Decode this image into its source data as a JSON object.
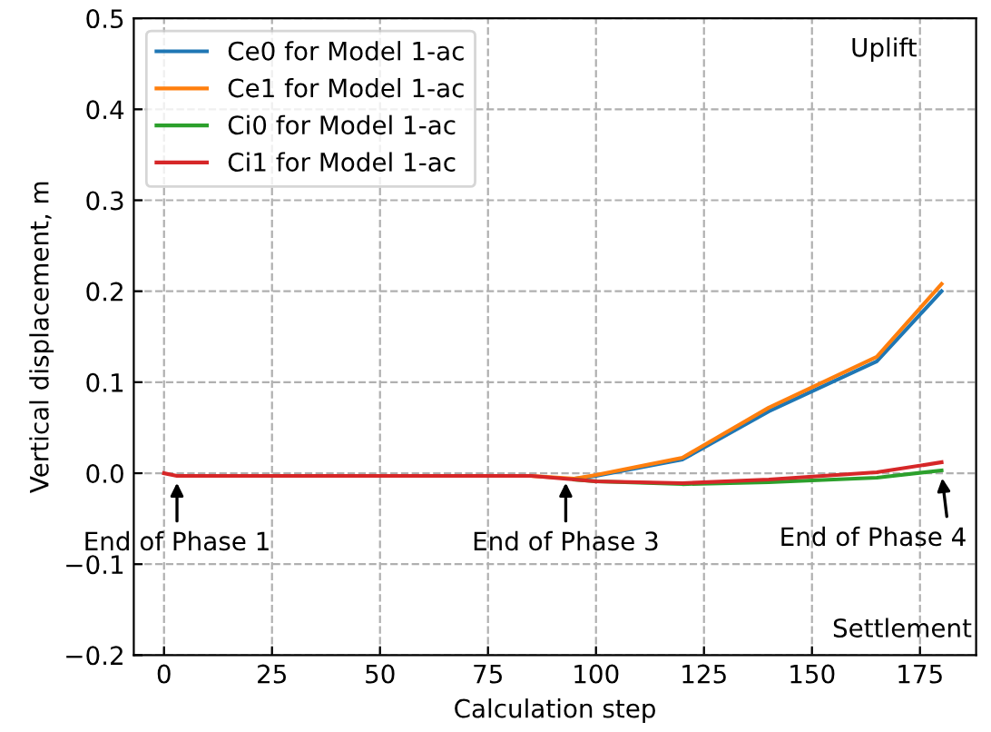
{
  "chart_data": {
    "type": "line",
    "xlabel": "Calculation step",
    "ylabel": "Vertical displacement, m",
    "xlim": [
      -7,
      188
    ],
    "ylim": [
      -0.2,
      0.5
    ],
    "xticks": [
      0,
      25,
      50,
      75,
      100,
      125,
      150,
      175
    ],
    "yticks": [
      {
        "value": -0.2,
        "label": "−0.2"
      },
      {
        "value": -0.1,
        "label": "−0.1"
      },
      {
        "value": 0,
        "label": "0.0"
      },
      {
        "value": 0.1,
        "label": "0.1"
      },
      {
        "value": 0.2,
        "label": "0.2"
      },
      {
        "value": 0.3,
        "label": "0.3"
      },
      {
        "value": 0.4,
        "label": "0.4"
      },
      {
        "value": 0.5,
        "label": "0.5"
      }
    ],
    "grid": true,
    "legend": "top left",
    "x": [
      0,
      3,
      50,
      85,
      95,
      100,
      120,
      140,
      165,
      180
    ],
    "series": [
      {
        "name": "Ce0 for Model 1-ac",
        "color": "#1f77b4",
        "values": [
          null,
          null,
          null,
          null,
          -0.006,
          -0.003,
          0.015,
          0.068,
          0.123,
          0.2
        ]
      },
      {
        "name": "Ce1 for Model 1-ac",
        "color": "#ff7f0e",
        "values": [
          null,
          null,
          null,
          -0.003,
          -0.006,
          -0.002,
          0.017,
          0.072,
          0.128,
          0.208
        ]
      },
      {
        "name": "Ci0 for Model 1-ac",
        "color": "#2ca02c",
        "values": [
          null,
          null,
          null,
          null,
          -0.007,
          -0.009,
          -0.012,
          -0.01,
          -0.005,
          0.003
        ]
      },
      {
        "name": "Ci1 for Model 1-ac",
        "color": "#d62728",
        "values": [
          0,
          -0.003,
          -0.003,
          -0.003,
          -0.007,
          -0.009,
          -0.011,
          -0.007,
          0.001,
          0.012
        ]
      }
    ],
    "annotations": [
      {
        "text": "End of Phase 1",
        "x": 3,
        "y": -0.005
      },
      {
        "text": "End of Phase 3",
        "x": 93,
        "y": -0.005
      },
      {
        "text": "End of Phase 4",
        "x": 180,
        "y": 0.0
      },
      "Uplift",
      "Settlement"
    ]
  }
}
